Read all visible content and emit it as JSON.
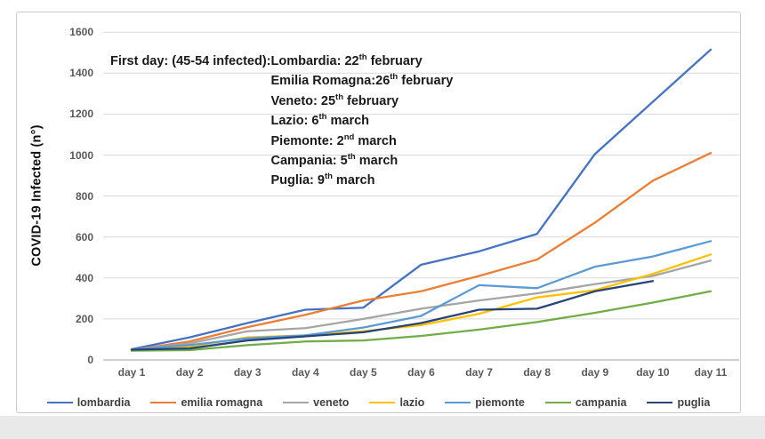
{
  "annotation": {
    "prefix": "First day: (45-54 infected): ",
    "lines": [
      {
        "region": "Lombardia",
        "sep": ": ",
        "day": "22",
        "ordinal": "th",
        "rest": " february"
      },
      {
        "region": "Emilia Romagna",
        "sep": ":",
        "day": "26",
        "ordinal": "th",
        "rest": " february"
      },
      {
        "region": "Veneto",
        "sep": ": ",
        "day": "25",
        "ordinal": "th",
        "rest": " february"
      },
      {
        "region": "Lazio",
        "sep": ": ",
        "day": "6",
        "ordinal": "th",
        "rest": " march"
      },
      {
        "region": "Piemonte",
        "sep": ": ",
        "day": "2",
        "ordinal": "nd",
        "rest": " march"
      },
      {
        "region": "Campania",
        "sep": ": ",
        "day": "5",
        "ordinal": "th",
        "rest": " march"
      },
      {
        "region": "Puglia",
        "sep": ": ",
        "day": "9",
        "ordinal": "th",
        "rest": " march"
      }
    ]
  },
  "chart_data": {
    "type": "line",
    "title": "",
    "xlabel": "",
    "ylabel": "COVID-19 Infected (n°)",
    "categories": [
      "day 1",
      "day 2",
      "day 3",
      "day 4",
      "day 5",
      "day 6",
      "day 7",
      "day 8",
      "day 9",
      "day 10",
      "day 11"
    ],
    "ylim": [
      0,
      1600
    ],
    "ytick_step": 200,
    "grid": true,
    "legend_position": "bottom",
    "series": [
      {
        "name": "lombardia",
        "color": "#4472C4",
        "values": [
          52,
          110,
          180,
          245,
          255,
          465,
          530,
          615,
          1005,
          1260,
          1515
        ]
      },
      {
        "name": "emilia romagna",
        "color": "#ED7D31",
        "values": [
          48,
          90,
          160,
          220,
          290,
          335,
          410,
          490,
          670,
          875,
          1010
        ]
      },
      {
        "name": "veneto",
        "color": "#A5A5A5",
        "values": [
          48,
          80,
          140,
          155,
          200,
          250,
          290,
          325,
          370,
          410,
          485
        ]
      },
      {
        "name": "lazio",
        "color": "#FFC000",
        "values": [
          45,
          65,
          110,
          120,
          140,
          170,
          225,
          305,
          340,
          420,
          515
        ]
      },
      {
        "name": "piemonte",
        "color": "#5B9BD5",
        "values": [
          51,
          72,
          105,
          120,
          158,
          215,
          365,
          350,
          455,
          505,
          580
        ]
      },
      {
        "name": "campania",
        "color": "#70AD47",
        "values": [
          45,
          48,
          72,
          90,
          95,
          117,
          148,
          185,
          230,
          280,
          335
        ]
      },
      {
        "name": "puglia",
        "color": "#264478",
        "values": [
          50,
          56,
          95,
          115,
          135,
          180,
          245,
          250,
          335,
          385,
          null
        ]
      }
    ],
    "axis_colors": {
      "gridline": "#D9D9D9",
      "axis_line": "#BFBFBF",
      "tick_label": "#595959"
    }
  }
}
